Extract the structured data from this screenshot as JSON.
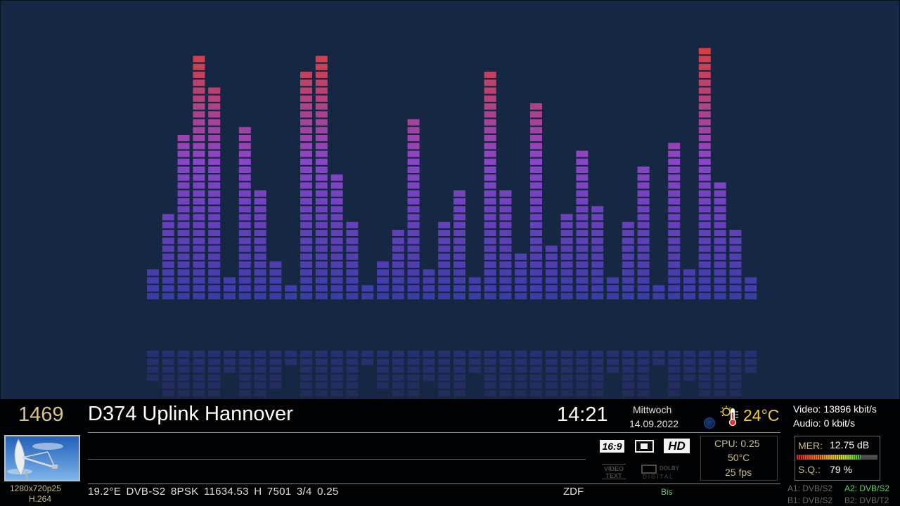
{
  "visualizer": {
    "bar_levels": [
      4,
      11,
      21,
      31,
      27,
      3,
      22,
      14,
      5,
      2,
      29,
      31,
      16,
      10,
      2,
      5,
      9,
      23,
      4,
      10,
      14,
      3,
      29,
      14,
      6,
      25,
      7,
      11,
      19,
      12,
      3,
      10,
      17,
      2,
      20,
      4,
      32,
      15,
      9,
      3
    ],
    "max_level": 32,
    "color_low": "#3c3ca8",
    "color_mid": "#8a45c8",
    "color_high": "#d53f42",
    "background": "#162743"
  },
  "channel": {
    "number": "1469",
    "name": "D374 Uplink Hannover",
    "provider": "ZDF",
    "tuning": "19.2°E DVB-S2 8PSK 11634.53 H 7501 3/4 0.25",
    "resolution": "1280x720p25",
    "codec": "H.264",
    "end_label": "Bis"
  },
  "clock": {
    "time": "14:21",
    "weekday": "Mittwoch",
    "date": "14.09.2022"
  },
  "weather": {
    "temperature": "24°C",
    "icon": "sun-thermometer-icon",
    "moon_icon": "moon-phase-icon"
  },
  "bitrate": {
    "video": "Video: 13896 kbit/s",
    "audio": "Audio: 0 kbit/s"
  },
  "badges": {
    "aspect": "16:9",
    "hd": "HD",
    "videotext_line1": "VIDEO",
    "videotext_line2": "TEXT",
    "dolby_mark": "DOLBY",
    "dolby_digital": "DIGITAL"
  },
  "system": {
    "cpu": "CPU: 0.25",
    "temp": "50°C",
    "fps": "25 fps"
  },
  "signal": {
    "mer_label": "MER:",
    "mer_value": "12.75 dB",
    "mer_fraction": 0.79,
    "sq_label": "S.Q.:",
    "sq_value": "79 %"
  },
  "tuners": {
    "a1": "A1: DVB/S2",
    "a2": "A2: DVB/S2",
    "b1": "B1: DVB/S2",
    "b2": "B2: DVB/T2"
  },
  "colors": {
    "gold": "#c8b98a",
    "channel_number": "#d6c48a",
    "temperature": "#f1cc3f",
    "active_green": "#5fd35f",
    "inactive_gray": "#6a6a6a"
  }
}
